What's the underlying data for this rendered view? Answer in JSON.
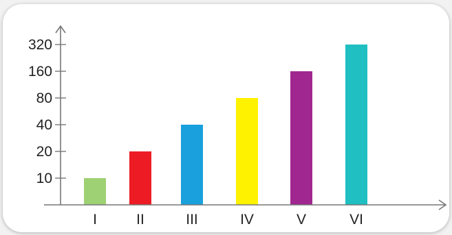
{
  "chart_data": {
    "type": "bar",
    "title": "",
    "xlabel": "",
    "ylabel": "",
    "y_scale": "log2",
    "categories": [
      "I",
      "II",
      "III",
      "IV",
      "V",
      "VI"
    ],
    "values": [
      10,
      20,
      40,
      80,
      160,
      320
    ],
    "y_ticks": [
      "10",
      "20",
      "40",
      "80",
      "160",
      "320"
    ],
    "ylim": [
      5,
      320
    ],
    "grid": false,
    "legend": "none",
    "bar_colors": [
      "#9ed174",
      "#ed1c24",
      "#1aa0dc",
      "#fff200",
      "#a0278f",
      "#1fbfc2"
    ]
  }
}
